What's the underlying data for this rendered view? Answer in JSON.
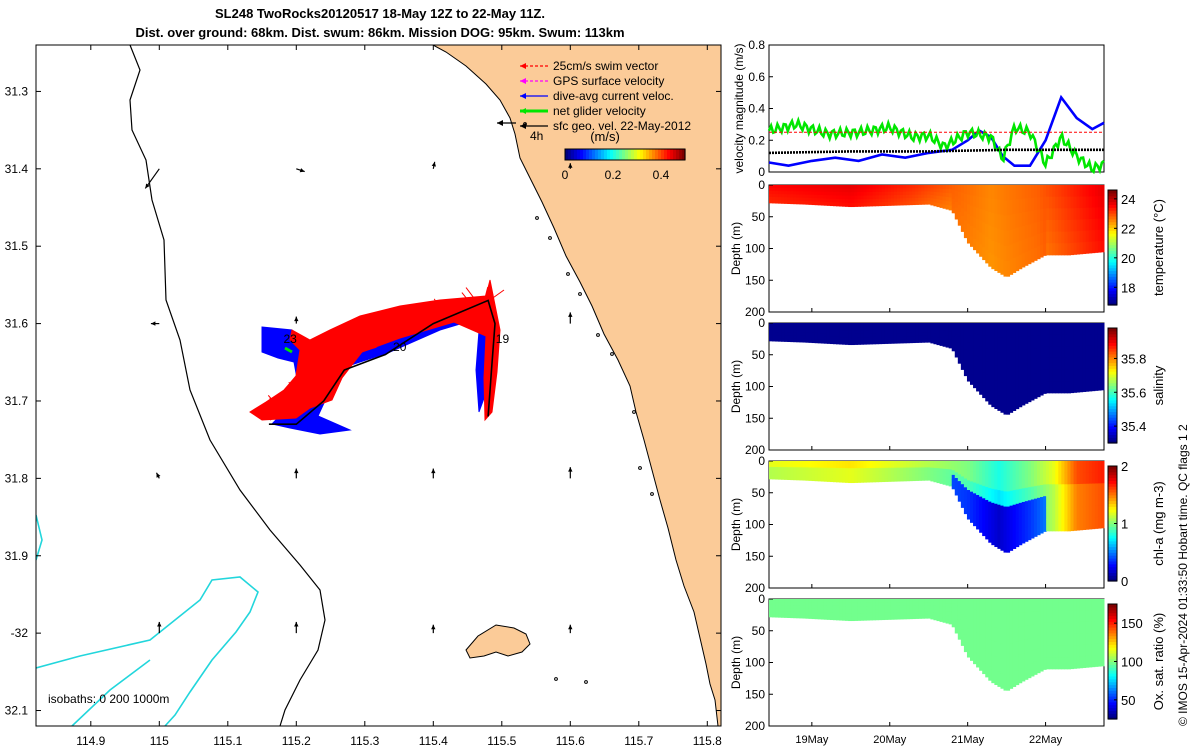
{
  "title": {
    "line1": "SL248 TwoRocks20120517 18-May 12Z to 22-May 11Z.",
    "line2": "Dist. over ground: 68km. Dist. swum: 86km. Mission DOG: 95km. Swum: 113km"
  },
  "credit": "© IMOS 15-Apr-2024 01:33:50 Hobart time. QC flags 1  2",
  "colors": {
    "land": "#fbcb98",
    "isobath_200": "#000000",
    "isobath_1000": "#22d6dc",
    "swim": "#ff0000",
    "gps": "#ff00ff",
    "current": "#0000ff",
    "net": "#00e600",
    "geo": "#000000"
  },
  "chart_data": [
    {
      "type": "map",
      "name": "glider track map",
      "xlim": [
        114.82,
        115.82
      ],
      "ylim": [
        -32.12,
        -31.24
      ],
      "xticks": [
        114.9,
        115,
        115.1,
        115.2,
        115.3,
        115.4,
        115.5,
        115.6,
        115.7,
        115.8
      ],
      "xtick_labels": [
        "114.9",
        "115",
        "115.1",
        "115.2",
        "115.3",
        "115.4",
        "115.5",
        "115.6",
        "115.7",
        "115.8"
      ],
      "yticks": [
        -31.3,
        -31.4,
        -31.5,
        -31.6,
        -31.7,
        -31.8,
        -31.9,
        -32.0,
        -32.1
      ],
      "ytick_labels": [
        "31.3",
        "31.4",
        "31.5",
        "31.6",
        "31.7",
        "31.8",
        "31.9",
        "-32",
        "32.1"
      ],
      "legend": [
        {
          "label": "25cm/s swim vector",
          "color": "#ff0000"
        },
        {
          "label": "GPS surface velocity",
          "color": "#ff00ff"
        },
        {
          "label": "dive-avg current veloc.",
          "color": "#0000ff"
        },
        {
          "label": "net glider velocity",
          "color": "#00e600"
        },
        {
          "label": "sfc geo. vel. 22-May-2012",
          "color": "#000000"
        }
      ],
      "scale_label": "4h",
      "colorbar": {
        "title": "(m/s)",
        "range": [
          0,
          0.5
        ],
        "ticks": [
          0,
          0.2,
          0.4
        ],
        "tick_labels": [
          "0",
          "0.2",
          "0.4"
        ]
      },
      "track_labels": [
        {
          "text": "23",
          "lon": 115.19,
          "lat": -31.62
        },
        {
          "text": "20",
          "lon": 115.35,
          "lat": -31.63
        },
        {
          "text": "19",
          "lon": 115.5,
          "lat": -31.62
        }
      ],
      "track": [
        {
          "lon": 115.48,
          "lat": -31.72
        },
        {
          "lon": 115.485,
          "lat": -31.66
        },
        {
          "lon": 115.49,
          "lat": -31.6
        },
        {
          "lon": 115.48,
          "lat": -31.57
        },
        {
          "lon": 115.4,
          "lat": -31.6
        },
        {
          "lon": 115.33,
          "lat": -31.64
        },
        {
          "lon": 115.27,
          "lat": -31.66
        },
        {
          "lon": 115.24,
          "lat": -31.7
        },
        {
          "lon": 115.2,
          "lat": -31.73
        },
        {
          "lon": 115.16,
          "lat": -31.73
        }
      ],
      "geo_vectors": [
        {
          "lon": 115.0,
          "lat": -31.4,
          "u": -0.1,
          "v": -0.14
        },
        {
          "lon": 115.2,
          "lat": -31.4,
          "u": 0.06,
          "v": -0.02
        },
        {
          "lon": 115.4,
          "lat": -31.4,
          "u": 0.01,
          "v": 0.05
        },
        {
          "lon": 115.6,
          "lat": -31.4,
          "u": 0.0,
          "v": 0.04
        },
        {
          "lon": 115.0,
          "lat": -31.6,
          "u": -0.06,
          "v": 0.0
        },
        {
          "lon": 115.2,
          "lat": -31.6,
          "u": 0.0,
          "v": 0.05
        },
        {
          "lon": 115.6,
          "lat": -31.6,
          "u": 0.0,
          "v": 0.08
        },
        {
          "lon": 115.0,
          "lat": -31.8,
          "u": -0.02,
          "v": 0.04
        },
        {
          "lon": 115.2,
          "lat": -31.8,
          "u": 0.0,
          "v": 0.07
        },
        {
          "lon": 115.4,
          "lat": -31.8,
          "u": 0.0,
          "v": 0.07
        },
        {
          "lon": 115.6,
          "lat": -31.8,
          "u": 0.0,
          "v": 0.08
        },
        {
          "lon": 115.0,
          "lat": -32.0,
          "u": 0.0,
          "v": 0.08
        },
        {
          "lon": 115.2,
          "lat": -32.0,
          "u": 0.0,
          "v": 0.08
        },
        {
          "lon": 115.4,
          "lat": -32.0,
          "u": 0.0,
          "v": 0.06
        },
        {
          "lon": 115.6,
          "lat": -32.0,
          "u": 0.0,
          "v": 0.06
        }
      ],
      "isobath_label": "isobaths: 0   200  1000m"
    },
    {
      "type": "line",
      "name": "velocity time series",
      "xlim": [
        18.45,
        22.75
      ],
      "ylim": [
        0,
        0.8
      ],
      "ylabel": "velocity magnitude (m/s)",
      "yticks": [
        0,
        0.2,
        0.4,
        0.6,
        0.8
      ],
      "ytick_labels": [
        "0",
        "0.2",
        "0.4",
        "0.6",
        "0.8"
      ],
      "series": [
        {
          "name": "dive-avg current",
          "color": "#0000ff",
          "x": [
            18.45,
            18.7,
            19.0,
            19.3,
            19.6,
            19.9,
            20.2,
            20.5,
            20.8,
            21.0,
            21.15,
            21.3,
            21.45,
            21.6,
            21.8,
            22.0,
            22.2,
            22.4,
            22.6,
            22.75
          ],
          "y": [
            0.06,
            0.04,
            0.07,
            0.09,
            0.07,
            0.11,
            0.09,
            0.12,
            0.14,
            0.2,
            0.26,
            0.22,
            0.1,
            0.04,
            0.04,
            0.2,
            0.47,
            0.34,
            0.27,
            0.31
          ]
        },
        {
          "name": "net glider velocity",
          "color": "#00e600",
          "x": [
            18.45,
            18.8,
            19.2,
            19.6,
            20.0,
            20.3,
            20.5,
            20.7,
            21.0,
            21.3,
            21.45,
            21.6,
            21.8,
            22.0,
            22.2,
            22.4,
            22.6,
            22.75
          ],
          "y": [
            0.26,
            0.3,
            0.24,
            0.25,
            0.28,
            0.22,
            0.23,
            0.16,
            0.25,
            0.22,
            0.08,
            0.28,
            0.25,
            0.05,
            0.22,
            0.1,
            0.02,
            0.05
          ]
        },
        {
          "name": "sfc geo. vel.",
          "color": "#000000",
          "x": [
            18.45,
            19.5,
            20.5,
            21.5,
            22.75
          ],
          "y": [
            0.12,
            0.13,
            0.13,
            0.14,
            0.14
          ]
        },
        {
          "name": "swim",
          "color": "#ff0000",
          "x": [
            18.45,
            22.75
          ],
          "y": [
            0.25,
            0.25
          ]
        }
      ]
    },
    {
      "type": "section",
      "name": "temperature",
      "ylabel": "Depth (m)",
      "ylim": [
        200,
        0
      ],
      "yticks": [
        0,
        50,
        100,
        150,
        200
      ],
      "ytick_labels": [
        "0",
        "50",
        "100",
        "150",
        "200"
      ],
      "colorbar_label": "temperature (°C)",
      "clim": [
        16.8,
        24.6
      ],
      "colorbar_ticks": [
        18,
        20,
        22,
        24
      ],
      "colorbar_tick_labels": [
        "18",
        "20",
        "22",
        "24"
      ],
      "bottom_depth": {
        "x": [
          18.45,
          18.9,
          19.5,
          20.0,
          20.5,
          20.8,
          21.0,
          21.3,
          21.5,
          21.7,
          22.0,
          22.3,
          22.75
        ],
        "z": [
          28,
          30,
          34,
          32,
          30,
          40,
          90,
          130,
          145,
          130,
          110,
          110,
          105
        ]
      },
      "color_field": {
        "x": [
          18.45,
          19.5,
          20.3,
          20.8,
          21.3,
          21.9,
          22.2,
          22.75
        ],
        "v": [
          23.6,
          23.8,
          23.3,
          22.9,
          22.6,
          22.9,
          23.2,
          23.8
        ]
      }
    },
    {
      "type": "section",
      "name": "salinity",
      "ylabel": "Depth (m)",
      "ylim": [
        200,
        0
      ],
      "yticks": [
        0,
        50,
        100,
        150,
        200
      ],
      "ytick_labels": [
        "0",
        "50",
        "100",
        "150",
        "200"
      ],
      "colorbar_label": "salinity",
      "clim": [
        35.3,
        35.98
      ],
      "colorbar_ticks": [
        35.4,
        35.6,
        35.8
      ],
      "colorbar_tick_labels": [
        "35.4",
        "35.6",
        "35.8"
      ],
      "bottom_depth": {
        "x": [
          18.45,
          18.9,
          19.5,
          20.0,
          20.5,
          20.8,
          21.0,
          21.3,
          21.5,
          21.7,
          22.0,
          22.3,
          22.75
        ],
        "z": [
          28,
          30,
          34,
          32,
          30,
          40,
          90,
          130,
          145,
          130,
          110,
          110,
          105
        ]
      },
      "color_field": {
        "x": [
          18.45,
          22.75
        ],
        "v": [
          35.31,
          35.31
        ]
      }
    },
    {
      "type": "section",
      "name": "chl-a",
      "ylabel": "Depth (m)",
      "ylim": [
        200,
        0
      ],
      "yticks": [
        0,
        50,
        100,
        150,
        200
      ],
      "ytick_labels": [
        "0",
        "50",
        "100",
        "150",
        "200"
      ],
      "colorbar_label": "chl-a (mg m-3)",
      "clim": [
        0,
        2
      ],
      "colorbar_ticks": [
        0,
        1,
        2
      ],
      "colorbar_tick_labels": [
        "0",
        "1",
        "2"
      ],
      "bottom_depth": {
        "x": [
          18.45,
          18.9,
          19.5,
          20.0,
          20.5,
          20.8,
          21.0,
          21.3,
          21.5,
          21.7,
          22.0,
          22.3,
          22.75
        ],
        "z": [
          28,
          30,
          34,
          32,
          30,
          40,
          90,
          130,
          145,
          130,
          110,
          110,
          105
        ]
      },
      "color_field": {
        "x": [
          18.45,
          19.5,
          20.5,
          21.0,
          21.4,
          21.8,
          22.1,
          22.4,
          22.75
        ],
        "v": [
          1.1,
          1.2,
          1.0,
          0.9,
          0.7,
          0.9,
          1.1,
          1.5,
          1.6
        ]
      }
    },
    {
      "type": "section",
      "name": "oxygen saturation",
      "ylabel": "Depth (m)",
      "ylim": [
        200,
        0
      ],
      "yticks": [
        0,
        50,
        100,
        150,
        200
      ],
      "ytick_labels": [
        "0",
        "50",
        "100",
        "150",
        "200"
      ],
      "colorbar_label": "Ox. sat. ratio (%)",
      "clim": [
        25,
        175
      ],
      "colorbar_ticks": [
        50,
        100,
        150
      ],
      "colorbar_tick_labels": [
        "50",
        "100",
        "150"
      ],
      "bottom_depth": {
        "x": [
          18.45,
          18.9,
          19.5,
          20.0,
          20.5,
          20.8,
          21.0,
          21.3,
          21.5,
          21.7,
          22.0,
          22.3,
          22.75
        ],
        "z": [
          28,
          30,
          34,
          32,
          30,
          40,
          90,
          130,
          145,
          130,
          110,
          110,
          105
        ]
      },
      "color_field": {
        "x": [
          18.45,
          22.75
        ],
        "v": [
          98,
          98
        ]
      }
    }
  ],
  "time_axis": {
    "ticks": [
      19,
      20,
      21,
      22
    ],
    "tick_labels": [
      "19May",
      "20May",
      "21May",
      "22May"
    ]
  }
}
